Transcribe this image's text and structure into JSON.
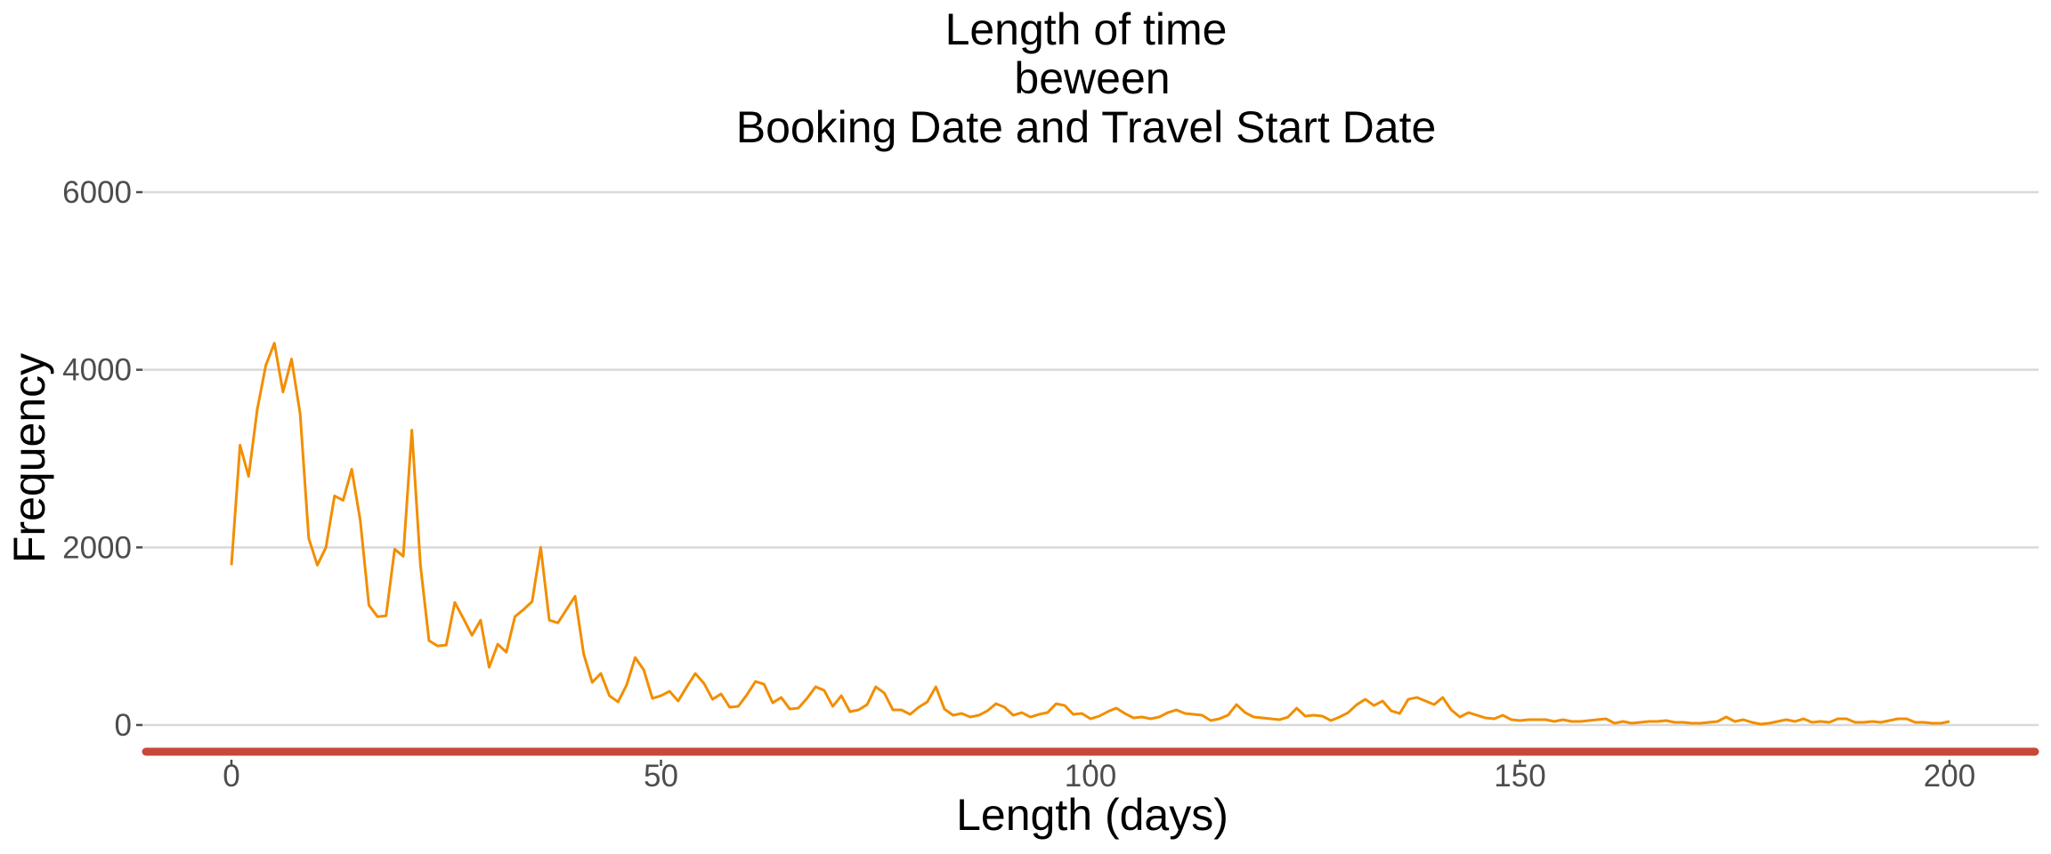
{
  "chart_data": {
    "type": "line",
    "title": [
      "Length of time",
      "beween",
      "Booking Date and Travel Start Date"
    ],
    "xlabel": "Length (days)",
    "ylabel": "Frequency",
    "xlim": [
      -10,
      210
    ],
    "ylim": [
      -300,
      6000
    ],
    "x_ticks": [
      0,
      50,
      100,
      150,
      200
    ],
    "y_ticks": [
      0,
      2000,
      4000,
      6000
    ],
    "grid": "horizontal major",
    "legend": "none",
    "colors": {
      "line": "#f28e00",
      "baseline": "#c9473a",
      "grid": "#d9d9d9",
      "tick_text": "#4d4d4d"
    },
    "series": [
      {
        "x": [
          0,
          1,
          2,
          3,
          4,
          5,
          6,
          7,
          8,
          9,
          10,
          11,
          12,
          13,
          14,
          15,
          16,
          17,
          18,
          19,
          20,
          21,
          22,
          23,
          24,
          25,
          26,
          27,
          28,
          29,
          30,
          31,
          32,
          33,
          34,
          35,
          36,
          37,
          38,
          39,
          40,
          41,
          42,
          43,
          44,
          45,
          46,
          47,
          48,
          49,
          50,
          51,
          52,
          53,
          54,
          55,
          56,
          57,
          58,
          59,
          60,
          61,
          62,
          63,
          64,
          65,
          66,
          67,
          68,
          69,
          70,
          71,
          72,
          73,
          74,
          75,
          76,
          77,
          78,
          79,
          80,
          81,
          82,
          83,
          84,
          85,
          86,
          87,
          88,
          89,
          90,
          91,
          92,
          93,
          94,
          95,
          96,
          97,
          98,
          99,
          100,
          101,
          102,
          103,
          104,
          105,
          106,
          107,
          108,
          109,
          110,
          111,
          112,
          113,
          114,
          115,
          116,
          117,
          118,
          119,
          120,
          121,
          122,
          123,
          124,
          125,
          126,
          127,
          128,
          129,
          130,
          131,
          132,
          133,
          134,
          135,
          136,
          137,
          138,
          139,
          140,
          141,
          142,
          143,
          144,
          145,
          146,
          147,
          148,
          149,
          150,
          151,
          152,
          153,
          154,
          155,
          156,
          157,
          158,
          159,
          160,
          161,
          162,
          163,
          164,
          165,
          166,
          167,
          168,
          169,
          170,
          171,
          172,
          173,
          174,
          175,
          176,
          177,
          178,
          179,
          180,
          181,
          182,
          183,
          184,
          185,
          186,
          187,
          188,
          189,
          190,
          191,
          192,
          193,
          194,
          195,
          196,
          197,
          198,
          199,
          200
        ],
        "y": [
          1800,
          3150,
          2800,
          3550,
          4050,
          4300,
          3750,
          4120,
          3500,
          2100,
          1800,
          2000,
          2580,
          2530,
          2880,
          2300,
          1350,
          1220,
          1230,
          1980,
          1900,
          3320,
          1800,
          950,
          890,
          900,
          1380,
          1200,
          1010,
          1180,
          650,
          910,
          820,
          1220,
          1300,
          1390,
          2000,
          1180,
          1150,
          1300,
          1450,
          800,
          480,
          580,
          330,
          260,
          450,
          760,
          620,
          300,
          330,
          380,
          270,
          430,
          580,
          470,
          290,
          350,
          200,
          210,
          340,
          490,
          460,
          250,
          310,
          180,
          190,
          300,
          430,
          390,
          210,
          330,
          150,
          170,
          230,
          430,
          360,
          170,
          170,
          120,
          200,
          260,
          430,
          180,
          110,
          130,
          90,
          110,
          160,
          240,
          200,
          110,
          140,
          90,
          120,
          140,
          240,
          220,
          120,
          130,
          70,
          100,
          150,
          190,
          130,
          80,
          90,
          70,
          90,
          140,
          170,
          130,
          120,
          110,
          50,
          70,
          110,
          230,
          140,
          90,
          80,
          70,
          60,
          90,
          190,
          100,
          110,
          100,
          50,
          90,
          140,
          230,
          290,
          220,
          270,
          160,
          130,
          290,
          310,
          270,
          230,
          310,
          170,
          90,
          140,
          110,
          80,
          70,
          110,
          60,
          50,
          60,
          60,
          60,
          40,
          60,
          40,
          40,
          50,
          60,
          70,
          20,
          40,
          20,
          30,
          40,
          40,
          50,
          30,
          30,
          20,
          20,
          30,
          40,
          90,
          40,
          60,
          30,
          10,
          20,
          40,
          60,
          40,
          70,
          30,
          40,
          30,
          70,
          70,
          30,
          30,
          40,
          30,
          50,
          70,
          70,
          30,
          30,
          20,
          20,
          40
        ]
      }
    ]
  }
}
